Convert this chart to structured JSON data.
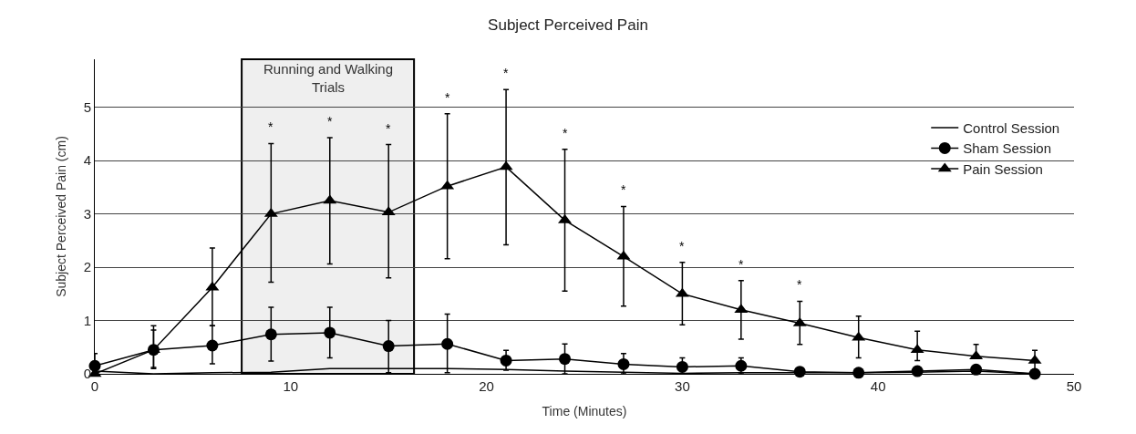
{
  "chart_data": {
    "type": "line",
    "title": "Subject Perceived Pain",
    "xlabel": "Time (Minutes)",
    "ylabel": "Subject Perceived Pain (cm)",
    "x": [
      0,
      3,
      6,
      9,
      12,
      15,
      18,
      21,
      24,
      27,
      30,
      33,
      36,
      39,
      42,
      45,
      48
    ],
    "series": [
      {
        "name": "Control Session",
        "color": "#000000",
        "marker": "none",
        "values": [
          0.05,
          0.0,
          0.02,
          0.03,
          0.1,
          0.1,
          0.1,
          0.08,
          0.05,
          0.03,
          0.01,
          0.02,
          0.02,
          0.02,
          0.03,
          0.05,
          0.0
        ]
      },
      {
        "name": "Sham Session",
        "color": "#000000",
        "marker": "circle",
        "values": [
          0.15,
          0.45,
          0.53,
          0.74,
          0.77,
          0.52,
          0.56,
          0.25,
          0.28,
          0.18,
          0.13,
          0.15,
          0.04,
          0.02,
          0.05,
          0.08,
          0.0
        ],
        "errors": [
          [
            0.15,
            0.38
          ],
          [
            0.1,
            0.9
          ],
          [
            0.19,
            0.9
          ],
          [
            0.24,
            1.25
          ],
          [
            0.3,
            1.25
          ],
          [
            0.02,
            1.0
          ],
          [
            0.02,
            1.12
          ],
          [
            0.07,
            0.44
          ],
          [
            0.0,
            0.56
          ],
          [
            0.0,
            0.38
          ],
          [
            0.0,
            0.3
          ],
          [
            0.0,
            0.3
          ],
          null,
          null,
          null,
          null,
          null
        ]
      },
      {
        "name": "Pain Session",
        "color": "#000000",
        "marker": "triangle",
        "values": [
          0.0,
          0.45,
          1.62,
          3.0,
          3.25,
          3.03,
          3.52,
          3.88,
          2.88,
          2.2,
          1.5,
          1.2,
          0.95,
          0.68,
          0.45,
          0.33,
          0.25
        ],
        "errors": [
          null,
          [
            0.12,
            0.82
          ],
          [
            0.9,
            2.36
          ],
          [
            1.72,
            4.32
          ],
          [
            2.06,
            4.43
          ],
          [
            1.8,
            4.3
          ],
          [
            2.16,
            4.88
          ],
          [
            2.42,
            5.33
          ],
          [
            1.55,
            4.21
          ],
          [
            1.27,
            3.14
          ],
          [
            0.92,
            2.09
          ],
          [
            0.65,
            1.75
          ],
          [
            0.55,
            1.36
          ],
          [
            0.3,
            1.08
          ],
          [
            0.25,
            0.8
          ],
          [
            0.33,
            0.55
          ],
          [
            0.05,
            0.44
          ]
        ]
      }
    ],
    "xlim": [
      0,
      50
    ],
    "xticks": [
      0,
      10,
      20,
      30,
      40,
      50
    ],
    "ylim": [
      0,
      5.9
    ],
    "yticks": [
      0,
      1,
      2,
      3,
      4,
      5
    ],
    "grid": "y",
    "legend": "top right",
    "line_style": "solid",
    "bands": [
      {
        "axis": "x",
        "from": 7.5,
        "to": 16.3,
        "label": "Running and Walking Trials",
        "color": "#efefef"
      }
    ],
    "annotations": [
      {
        "text": "*",
        "x": 9,
        "y": 4.32
      },
      {
        "text": "*",
        "x": 12,
        "y": 4.43
      },
      {
        "text": "*",
        "x": 15,
        "y": 4.3
      },
      {
        "text": "*",
        "x": 18,
        "y": 4.88
      },
      {
        "text": "*",
        "x": 21,
        "y": 5.33
      },
      {
        "text": "*",
        "x": 24,
        "y": 4.21
      },
      {
        "text": "*",
        "x": 27,
        "y": 3.14
      },
      {
        "text": "*",
        "x": 30,
        "y": 2.09
      },
      {
        "text": "*",
        "x": 33,
        "y": 1.75
      },
      {
        "text": "*",
        "x": 36,
        "y": 1.36
      }
    ]
  }
}
